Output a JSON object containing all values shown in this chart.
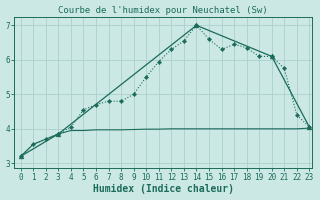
{
  "title": "Courbe de l'humidex pour Neuchatel (Sw)",
  "xlabel": "Humidex (Indice chaleur)",
  "bg_color": "#cce8e5",
  "grid_color": "#aacfcc",
  "line_color": "#1a6b5a",
  "xlim": [
    -0.5,
    23.2
  ],
  "ylim": [
    2.85,
    7.25
  ],
  "x_ticks": [
    0,
    1,
    2,
    3,
    4,
    5,
    6,
    7,
    8,
    9,
    10,
    11,
    12,
    13,
    14,
    15,
    16,
    17,
    18,
    19,
    20,
    21,
    22,
    23
  ],
  "y_ticks": [
    3,
    4,
    5,
    6,
    7
  ],
  "curve1_x": [
    0,
    1,
    2,
    3,
    4,
    5,
    6,
    7,
    8,
    9,
    10,
    11,
    12,
    13,
    14,
    15,
    16,
    17,
    18,
    19,
    20,
    21,
    22,
    23
  ],
  "curve1_y": [
    3.2,
    3.55,
    3.7,
    3.85,
    4.05,
    4.55,
    4.7,
    4.8,
    4.8,
    5.0,
    5.5,
    5.95,
    6.3,
    6.55,
    7.0,
    6.6,
    6.3,
    6.45,
    6.35,
    6.1,
    6.1,
    5.75,
    4.4,
    4.05
  ],
  "curve2_x": [
    0,
    3,
    14,
    20,
    23
  ],
  "curve2_y": [
    3.2,
    3.85,
    7.0,
    6.1,
    4.05
  ],
  "curve3_x": [
    0,
    1,
    2,
    3,
    4,
    5,
    6,
    7,
    8,
    9,
    10,
    11,
    12,
    13,
    14,
    15,
    16,
    17,
    18,
    19,
    20,
    21,
    22,
    23
  ],
  "curve3_y": [
    3.2,
    3.55,
    3.7,
    3.85,
    3.95,
    3.95,
    3.97,
    3.97,
    3.97,
    3.98,
    3.99,
    3.99,
    4.0,
    4.0,
    4.0,
    4.0,
    4.0,
    4.0,
    4.0,
    4.0,
    4.0,
    4.0,
    4.0,
    4.02
  ],
  "title_fontsize": 6.5,
  "xlabel_fontsize": 7,
  "tick_fontsize": 5.5
}
